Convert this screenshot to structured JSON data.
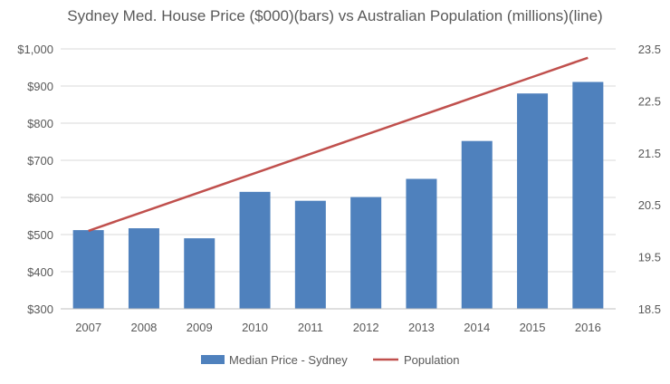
{
  "chart_data": {
    "type": "bar",
    "title": "Sydney Med. House Price ($000)(bars) vs Australian Population  (millions)(line)",
    "categories": [
      "2007",
      "2008",
      "2009",
      "2010",
      "2011",
      "2012",
      "2013",
      "2014",
      "2015",
      "2016"
    ],
    "series": [
      {
        "name": "Median Price - Sydney",
        "type": "bar",
        "axis": "left",
        "color": "#4f81bd",
        "values": [
          512,
          517,
          490,
          615,
          591,
          601,
          650,
          752,
          880,
          911
        ]
      },
      {
        "name": "Population",
        "type": "line",
        "axis": "right",
        "color": "#c0504d",
        "values": [
          20.0,
          20.37,
          20.74,
          21.11,
          21.48,
          21.85,
          22.22,
          22.59,
          22.96,
          23.33
        ]
      }
    ],
    "y_left": {
      "ylim": [
        300,
        1000
      ],
      "tick_labels": [
        "$300",
        "$400",
        "$500",
        "$600",
        "$700",
        "$800",
        "$900",
        "$1,000"
      ]
    },
    "y_right": {
      "ylim": [
        18.5,
        23.5
      ],
      "tick_labels": [
        "18.5",
        "19.5",
        "20.5",
        "21.5",
        "22.5",
        "23.5"
      ]
    },
    "grid": true,
    "legend": "bottom"
  }
}
